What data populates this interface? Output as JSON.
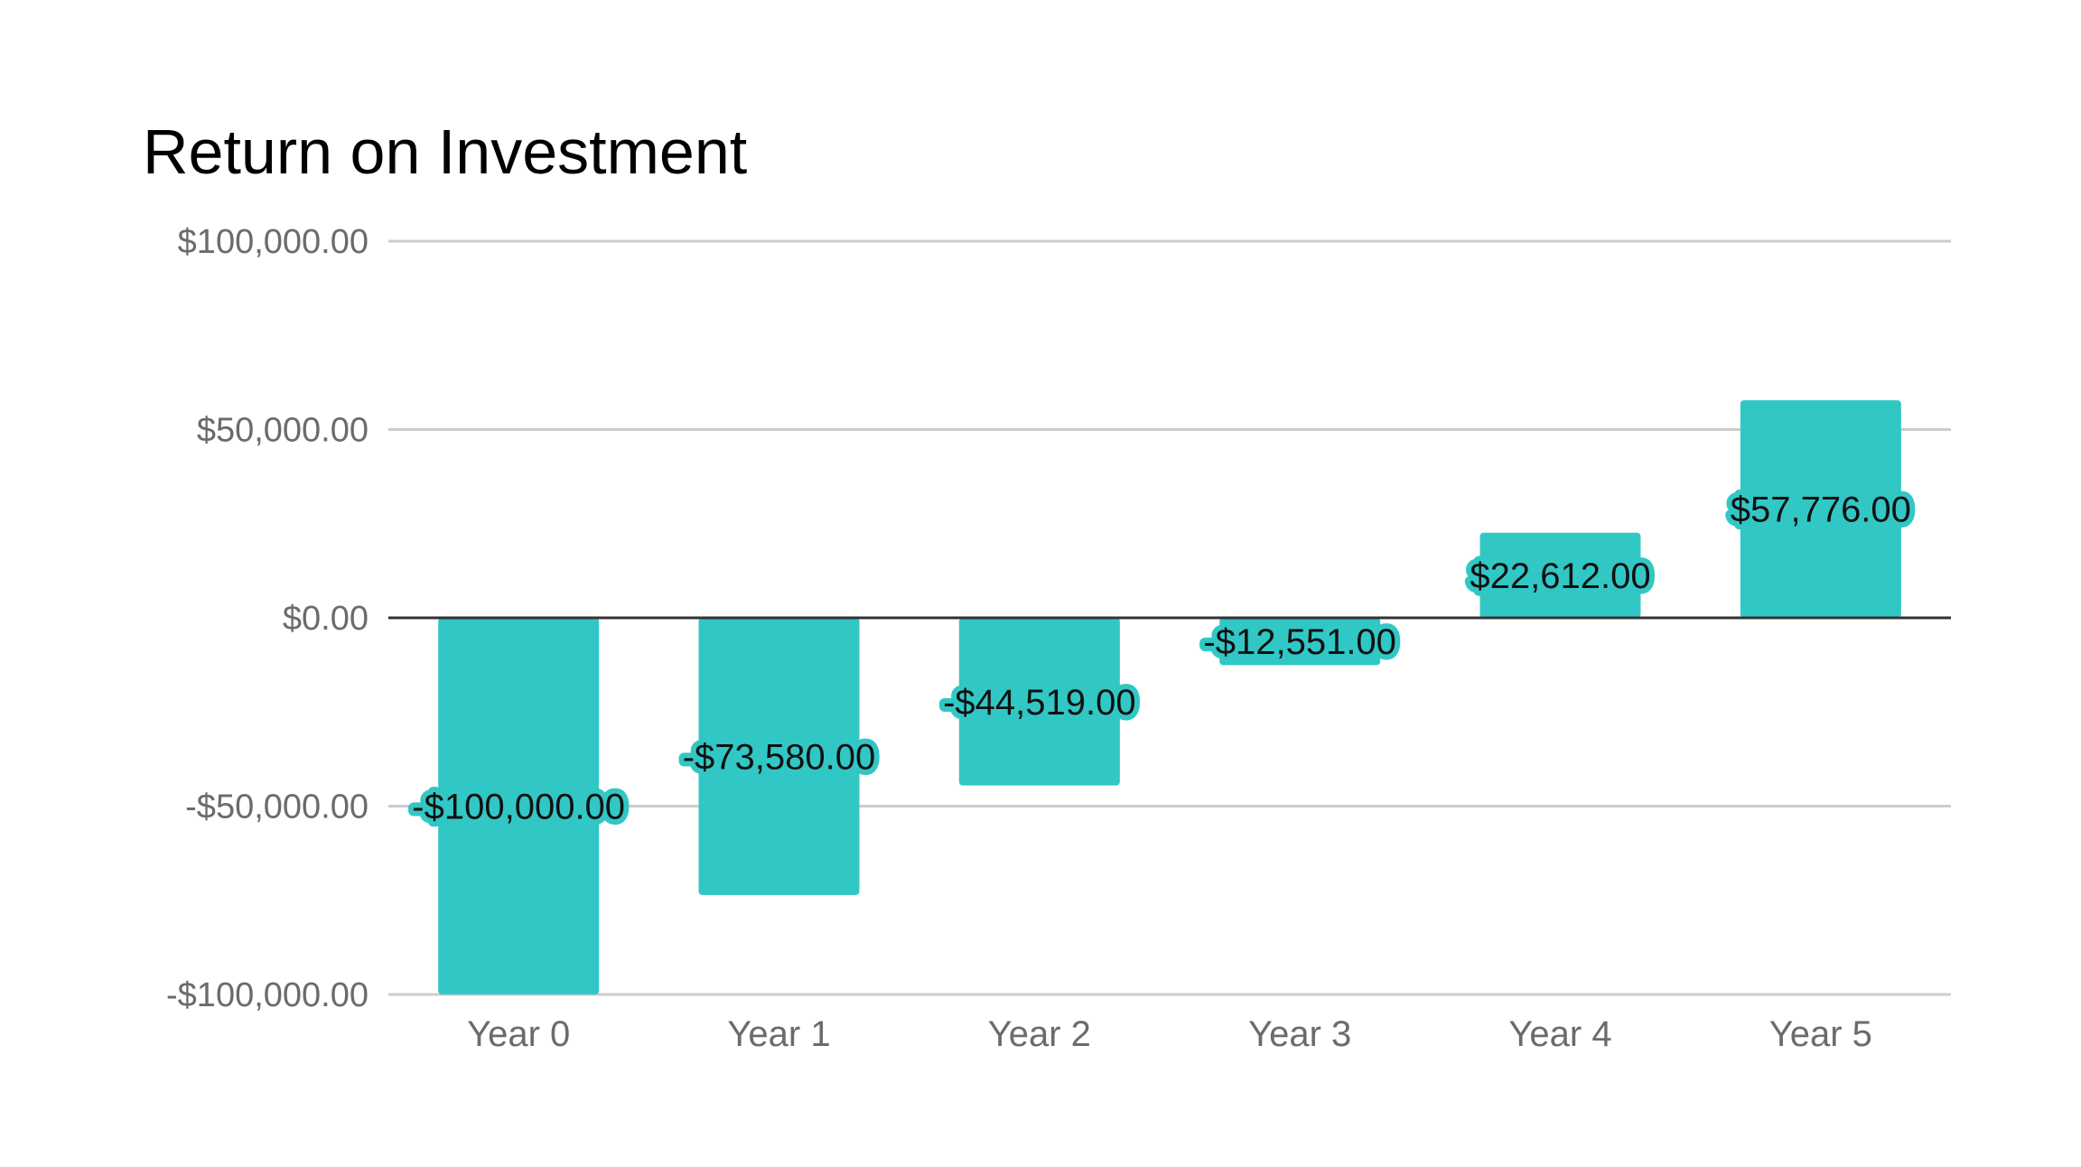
{
  "chart_data": {
    "type": "bar",
    "title": "Return on Investment",
    "xlabel": "",
    "ylabel": "",
    "categories": [
      "Year 0",
      "Year 1",
      "Year 2",
      "Year 3",
      "Year 4",
      "Year 5"
    ],
    "values": [
      -100000,
      -73580,
      -44519,
      -12551,
      22612,
      57776
    ],
    "data_labels": [
      "-$100,000.00",
      "-$73,580.00",
      "-$44,519.00",
      "-$12,551.00",
      "$22,612.00",
      "$57,776.00"
    ],
    "ylim": [
      -100000,
      100000
    ],
    "yticks": [
      100000,
      50000,
      0,
      -50000,
      -100000
    ],
    "ytick_labels": [
      "$100,000.00",
      "$50,000.00",
      "$0.00",
      "-$50,000.00",
      "-$100,000.00"
    ],
    "grid": true,
    "legend": "none",
    "colors": {
      "bar": "#31c7c5",
      "label_halo": "#31c7c5",
      "grid": "#cccccc",
      "zero_line": "#333333"
    }
  }
}
